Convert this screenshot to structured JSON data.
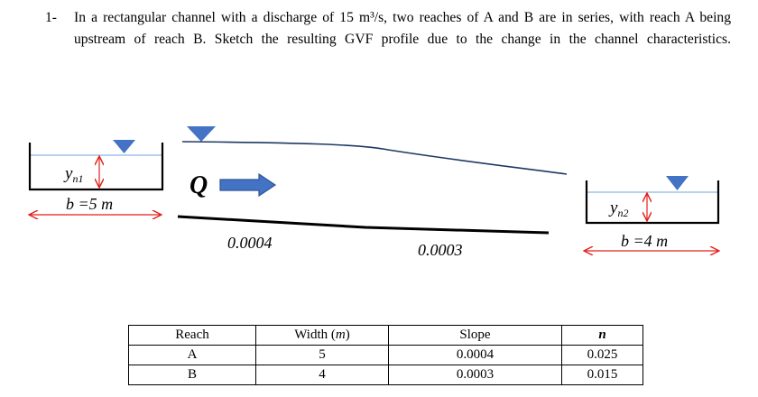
{
  "problem": {
    "number": "1-",
    "text": "In a rectangular channel with a discharge of 15 m³/s, two reaches of A and B are in series, with reach A being upstream of reach B. Sketch the resulting GVF profile due to the change in the channel characteristics."
  },
  "figure": {
    "yn1_label": "y",
    "yn1_sub": "n1",
    "b1_label": "b =5 m",
    "q_label": "Q",
    "slope_a": "0.0004",
    "slope_b": "0.0003",
    "yn2_label": "y",
    "yn2_sub": "n2",
    "b2_label": "b =4 m",
    "colors": {
      "water": "#4472c4",
      "arrow": "#e0201a",
      "channel": "#000000"
    }
  },
  "table": {
    "headers": {
      "reach": "Reach",
      "width_pre": "Width (",
      "width_unit": "m",
      "width_post": ")",
      "slope": "Slope",
      "n": "n"
    },
    "rows": [
      {
        "reach": "A",
        "width": "5",
        "slope": "0.0004",
        "n": "0.025"
      },
      {
        "reach": "B",
        "width": "4",
        "slope": "0.0003",
        "n": "0.015"
      }
    ]
  }
}
